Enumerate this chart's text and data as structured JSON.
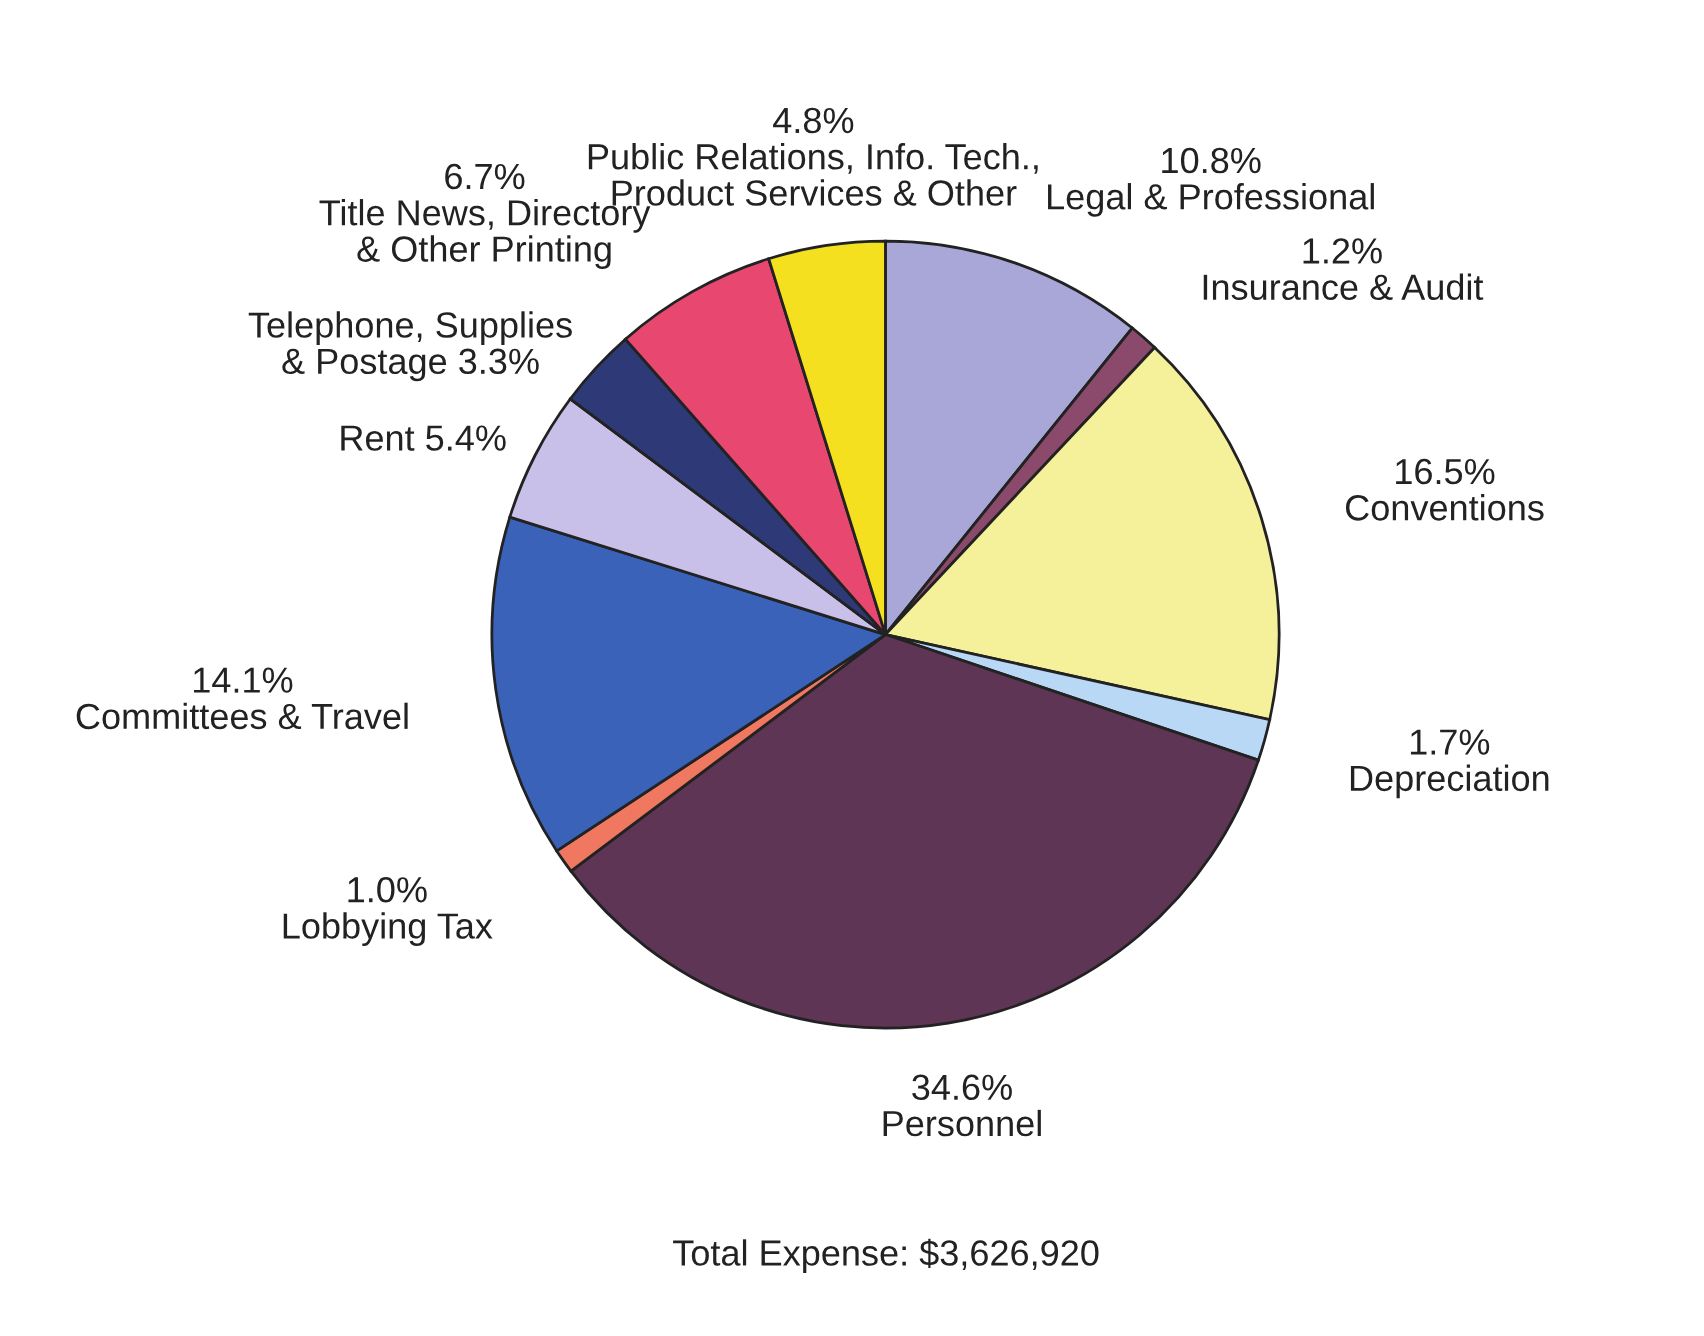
{
  "chart_data": {
    "type": "pie",
    "categories": [
      "Legal & Professional",
      "Insurance & Audit",
      "Conventions",
      "Depreciation",
      "Personnel",
      "Lobbying Tax",
      "Committees & Travel",
      "Rent",
      "Telephone, Supplies\n& Postage",
      "Title News, Directory\n& Other Printing",
      "Public Relations, Info. Tech.,\nProduct Services & Other"
    ],
    "values": [
      10.8,
      1.2,
      16.5,
      1.7,
      34.6,
      1.0,
      14.1,
      5.4,
      3.3,
      6.7,
      4.8
    ],
    "value_labels": [
      "10.8%",
      "1.2%",
      "16.5%",
      "1.7%",
      "34.6%",
      "1.0%",
      "14.1%",
      "5.4%",
      "3.3%",
      "6.7%",
      "4.8%"
    ],
    "colors": [
      "#a9a6d8",
      "#8b4a6b",
      "#f5f09a",
      "#b8d8f5",
      "#5e3555",
      "#f07860",
      "#3a62b8",
      "#c8c0e8",
      "#2e3a78",
      "#e84870",
      "#f5e020"
    ],
    "annotations": [
      "Total Expense: $3,626,920"
    ],
    "legend": false
  }
}
